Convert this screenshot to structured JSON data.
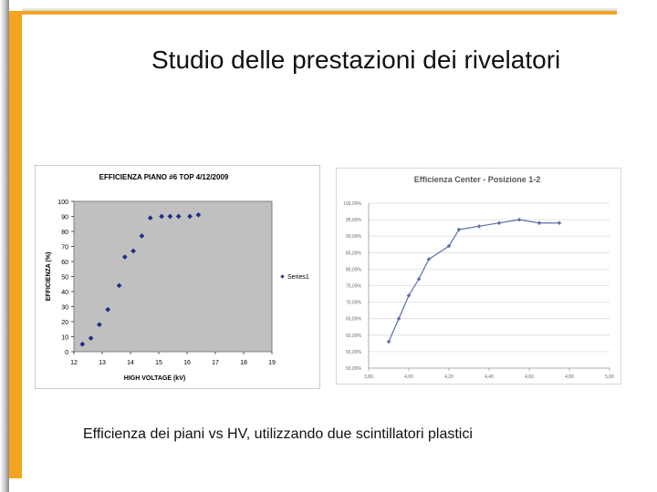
{
  "slide": {
    "title": "Studio delle prestazioni dei rivelatori",
    "caption": "Efficienza dei piani vs HV, utilizzando due scintillatori plastici"
  },
  "colors": {
    "accent": "#f2a51d",
    "chart1_points": "#1f2a8a",
    "chart1_plot_bg": "#c0c0c0",
    "chart2_line": "#5b6fa8"
  },
  "chart_data": [
    {
      "type": "scatter",
      "title": "EFFICIENZA PIANO #6 TOP 4/12/2009",
      "xlabel": "HIGH VOLTAGE (kV)",
      "ylabel": "EFFICIENZA (%)",
      "xlim": [
        12,
        19
      ],
      "ylim": [
        0,
        100
      ],
      "xticks": [
        "12",
        "13",
        "14",
        "15",
        "16",
        "17",
        "18",
        "19"
      ],
      "yticks": [
        "0",
        "10",
        "20",
        "30",
        "40",
        "50",
        "60",
        "70",
        "80",
        "90",
        "100"
      ],
      "grid": false,
      "legend": "right",
      "series": [
        {
          "name": "Series1",
          "x": [
            12.3,
            12.6,
            12.9,
            13.2,
            13.6,
            13.8,
            14.1,
            14.4,
            14.7,
            15.1,
            15.4,
            15.7,
            16.1,
            16.4
          ],
          "y": [
            5,
            9,
            18,
            28,
            44,
            63,
            67,
            77,
            89,
            90,
            90,
            90,
            90,
            91
          ]
        }
      ]
    },
    {
      "type": "line",
      "title": "Efficienza Center - Posizione 1-2",
      "xlabel": "",
      "ylabel": "",
      "xlim": [
        3.8,
        5.0
      ],
      "ylim": [
        50,
        100
      ],
      "xticks": [
        "3,80",
        "4,00",
        "4,20",
        "4,40",
        "4,60",
        "4,80",
        "5,00"
      ],
      "yticks": [
        "50,00%",
        "55,00%",
        "60,00%",
        "65,00%",
        "70,00%",
        "75,00%",
        "80,00%",
        "85,00%",
        "90,00%",
        "95,00%",
        "100,00%"
      ],
      "grid": true,
      "legend": "none",
      "series": [
        {
          "x": [
            3.9,
            3.95,
            4.0,
            4.05,
            4.1,
            4.2,
            4.25,
            4.35,
            4.45,
            4.55,
            4.65,
            4.75
          ],
          "y": [
            58,
            65,
            72,
            77,
            83,
            87,
            92,
            93,
            94,
            95,
            94,
            94
          ]
        }
      ]
    }
  ]
}
